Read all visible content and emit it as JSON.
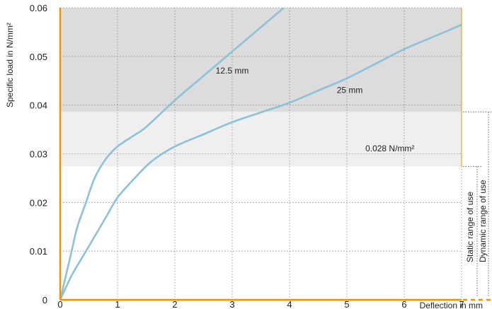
{
  "chart_data": {
    "type": "line",
    "ylabel": "Specific load in N/mm²",
    "xlabel": "Deflection in mm",
    "xlim": [
      0,
      7
    ],
    "ylim": [
      0,
      0.06
    ],
    "x_ticks": [
      "0",
      "1",
      "2",
      "3",
      "4",
      "5",
      "6",
      "7"
    ],
    "y_ticks": [
      "0",
      "0.01",
      "0.02",
      "0.03",
      "0.04",
      "0.05",
      "0.06"
    ],
    "grid": "dotted",
    "series": [
      {
        "name": "12.5 mm",
        "x": [
          0,
          0.1,
          0.2,
          0.3,
          0.45,
          0.6,
          0.8,
          1.0,
          1.25,
          1.5,
          2.0,
          2.5,
          3.0,
          3.5,
          3.93
        ],
        "y": [
          0,
          0.005,
          0.01,
          0.015,
          0.02,
          0.025,
          0.029,
          0.0315,
          0.0335,
          0.0355,
          0.041,
          0.046,
          0.051,
          0.056,
          0.0603
        ]
      },
      {
        "name": "25 mm",
        "x": [
          0,
          0.2,
          0.4,
          0.6,
          0.8,
          1.0,
          1.3,
          1.6,
          2.0,
          2.5,
          3.0,
          3.5,
          4.0,
          4.5,
          5.0,
          5.5,
          6.0,
          6.5,
          7.0
        ],
        "y": [
          0,
          0.005,
          0.009,
          0.013,
          0.017,
          0.021,
          0.025,
          0.0285,
          0.0315,
          0.034,
          0.0365,
          0.0385,
          0.0405,
          0.043,
          0.0455,
          0.0485,
          0.0515,
          0.054,
          0.0565
        ]
      }
    ],
    "bands": [
      {
        "from": 0.0386,
        "to": 0.06,
        "color": "#dcdcdc"
      },
      {
        "from": 0.0274,
        "to": 0.0386,
        "color": "#efefef"
      }
    ],
    "annotations": [
      {
        "text": "12.5 mm",
        "x": 3.0,
        "y": 0.0465
      },
      {
        "text": "25 mm",
        "x": 5.05,
        "y": 0.0425
      },
      {
        "text": "0.028 N/mm²",
        "x": 5.75,
        "y": 0.0305
      }
    ],
    "ranges": [
      {
        "label": "Static range of use",
        "from": 0,
        "to": 0.0274
      },
      {
        "label": "Dynamic range of use",
        "from": 0,
        "to": 0.0386
      }
    ],
    "colors": {
      "curve": "#8cc1d6",
      "axis": "#f39200",
      "grid": "#888888",
      "text": "#222222"
    }
  }
}
